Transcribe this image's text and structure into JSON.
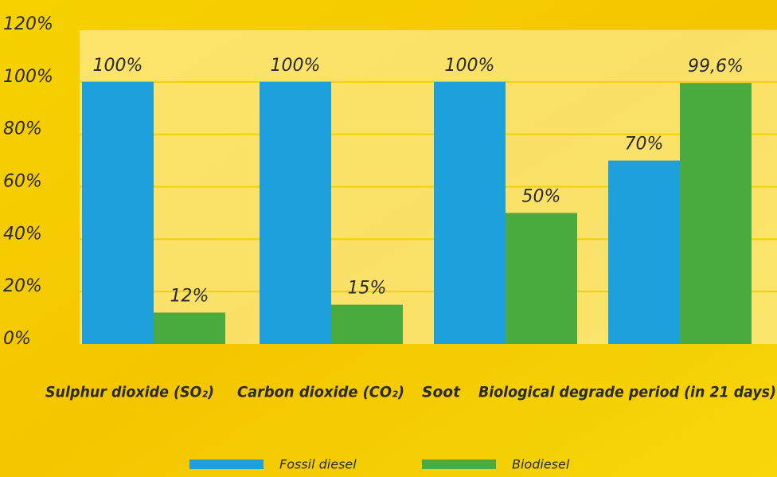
{
  "chart_data": {
    "type": "bar",
    "categories": [
      "Sulphur dioxide (SO₂)",
      "Carbon dioxide (CO₂)",
      "Soot",
      "Biological degrade period (in 21 days)"
    ],
    "series": [
      {
        "name": "Fossil diesel",
        "color": "#1ea0dc",
        "values": [
          100,
          100,
          100,
          70
        ],
        "value_labels": [
          "100%",
          "100%",
          "100%",
          "70%"
        ]
      },
      {
        "name": "Biodiesel",
        "color": "#4aab3e",
        "values": [
          12,
          15,
          50,
          99.6
        ],
        "value_labels": [
          "12%",
          "15%",
          "50%",
          "99,6%"
        ]
      }
    ],
    "ylim": [
      0,
      120
    ],
    "yticks": [
      {
        "value": 0,
        "label": "0%"
      },
      {
        "value": 20,
        "label": "20%"
      },
      {
        "value": 40,
        "label": "40%"
      },
      {
        "value": 60,
        "label": "60%"
      },
      {
        "value": 80,
        "label": "80%"
      },
      {
        "value": 100,
        "label": "100%"
      },
      {
        "value": 120,
        "label": "120%"
      }
    ],
    "grid": true,
    "legend": "bottom"
  }
}
